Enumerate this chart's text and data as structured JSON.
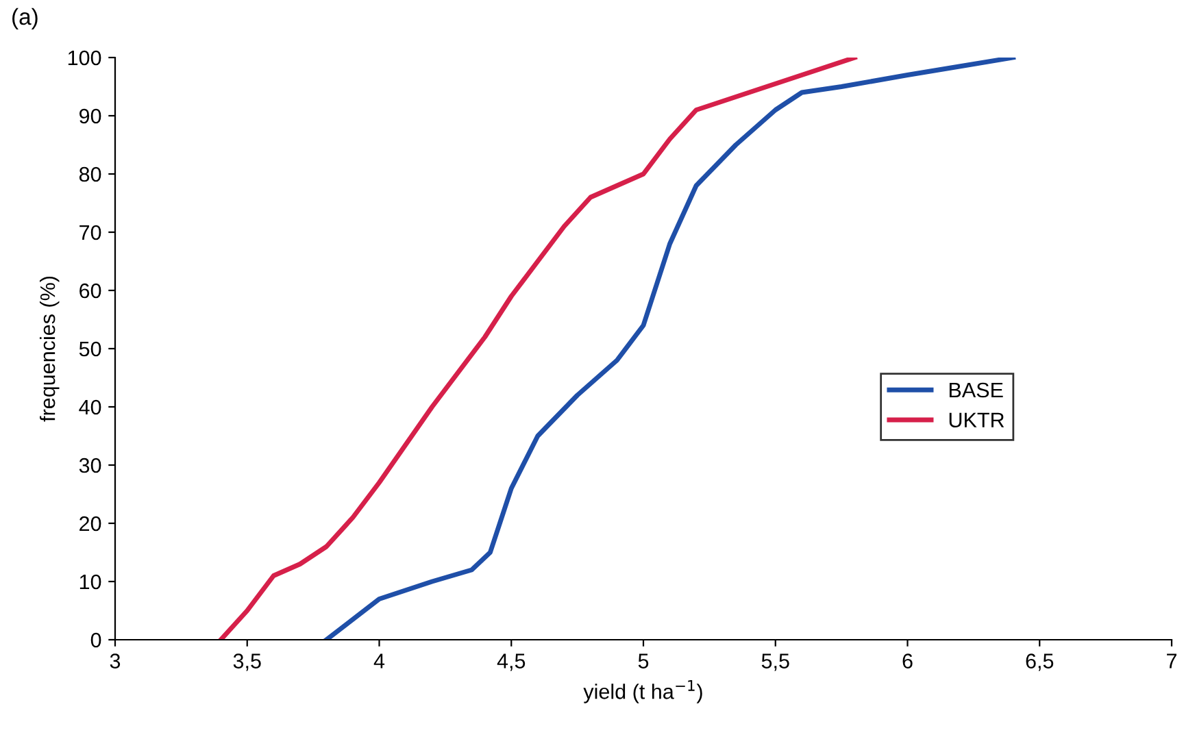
{
  "chart_data": {
    "type": "line",
    "xlabel": "yield (t ha$^{−1}$)",
    "ylabel": "frequencies (%)",
    "annotations": [
      "(a)"
    ],
    "xlim": [
      3,
      7
    ],
    "ylim": [
      0,
      100
    ],
    "xticks": [
      3,
      {
        "value": 3.5,
        "label": "3,5"
      },
      4,
      {
        "value": 4.5,
        "label": "4,5"
      },
      5,
      {
        "value": 5.5,
        "label": "5,5"
      },
      6,
      {
        "value": 6.5,
        "label": "6,5"
      },
      7
    ],
    "yticks": [
      0,
      10,
      20,
      30,
      40,
      50,
      60,
      70,
      80,
      90,
      100
    ],
    "grid": false,
    "legend": "right",
    "marker": "none",
    "line_style": "solid",
    "series": [
      {
        "name": "BASE",
        "color": "#1f4fa8",
        "x": [
          3.8,
          4.0,
          4.2,
          4.35,
          4.42,
          4.5,
          4.6,
          4.75,
          4.9,
          5.0,
          5.1,
          5.2,
          5.35,
          5.5,
          5.6,
          5.75,
          6.0,
          6.2,
          6.4
        ],
        "values": [
          0,
          7,
          10,
          12,
          15,
          26,
          35,
          42,
          48,
          54,
          68,
          78,
          85,
          91,
          94,
          95,
          97,
          98.5,
          100
        ]
      },
      {
        "name": "UKTR",
        "color": "#d6204a",
        "x": [
          3.4,
          3.5,
          3.6,
          3.7,
          3.8,
          3.9,
          4.0,
          4.2,
          4.4,
          4.5,
          4.6,
          4.7,
          4.8,
          4.9,
          5.0,
          5.1,
          5.2,
          5.4,
          5.6,
          5.8
        ],
        "values": [
          0,
          5,
          11,
          13,
          16,
          21,
          27,
          40,
          52,
          59,
          65,
          71,
          76,
          78,
          80,
          86,
          91,
          94,
          97,
          100
        ]
      }
    ]
  }
}
